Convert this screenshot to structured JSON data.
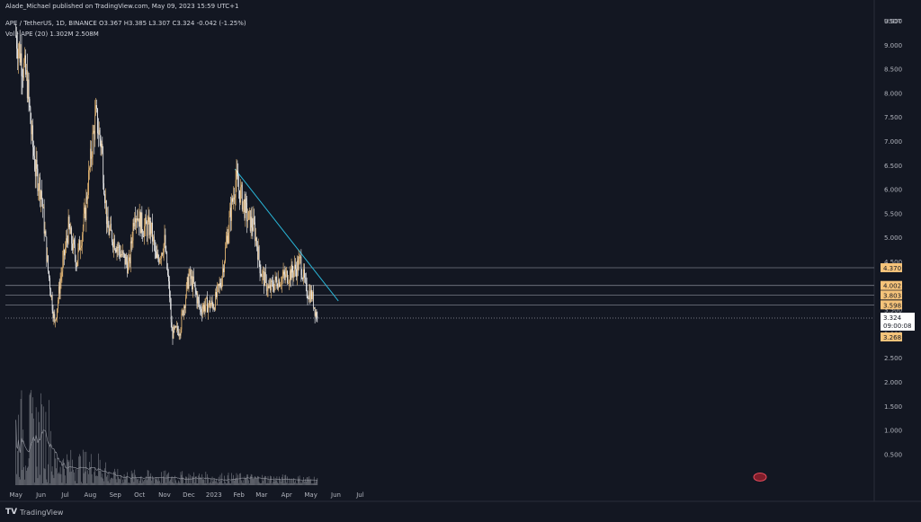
{
  "header": {
    "publisher": "Alade_Michael published on TradingView.com, May 09, 2023 15:59 UTC+1",
    "symbol_line": "APE / TetherUS, 1D, BINANCE",
    "ohlc": "O3.367  H3.385  L3.307  C3.324  -0.042 (-1.25%)",
    "volume_line": "Vol · APE (20)  1.302M  2.508M"
  },
  "footer": {
    "brand": "TradingView",
    "logo": "TV"
  },
  "colors": {
    "background": "#131722",
    "candle_up": "#f5c37a",
    "candle_down": "#ffffff",
    "volume": "#7b7e86",
    "trendline": "#29b6d8",
    "level_line": "#787b86",
    "price_label_bg": "#f5c37a",
    "current_label_bg": "#ffffff"
  },
  "chart_data": {
    "type": "candlestick",
    "symbol": "APE / TetherUS",
    "interval": "1D",
    "exchange": "BINANCE",
    "currency_label": "USDT",
    "y_ticks": [
      "9.500",
      "9.000",
      "8.500",
      "8.000",
      "7.500",
      "7.000",
      "6.500",
      "6.000",
      "5.500",
      "5.000",
      "4.500",
      "4.000",
      "3.500",
      "3.000",
      "2.500",
      "2.000",
      "1.500",
      "1.000",
      "0.500"
    ],
    "x_ticks": [
      "May",
      "Jun",
      "Jul",
      "Aug",
      "Sep",
      "Oct",
      "Nov",
      "Dec",
      "2023",
      "Feb",
      "Mar",
      "Apr",
      "May",
      "Jun",
      "Jul"
    ],
    "ylim": [
      0.3,
      10.0
    ],
    "last": {
      "open": 3.367,
      "high": 3.385,
      "low": 3.307,
      "close": 3.324,
      "change": -0.042,
      "change_pct": -1.25
    },
    "levels": [
      4.37,
      4.002,
      3.803,
      3.598
    ],
    "price_labels": [
      {
        "text": "4.370",
        "value": 4.37
      },
      {
        "text": "4.002",
        "value": 4.002
      },
      {
        "text": "3.803",
        "value": 3.803
      },
      {
        "text": "3.598",
        "value": 3.598
      }
    ],
    "current_price_label": {
      "price": "3.324",
      "countdown": "09:00:08",
      "value": 3.324
    },
    "low_label": {
      "text": "3.268",
      "value": 3.268
    },
    "trendline": {
      "from": {
        "date": "2023-01-27",
        "price": 6.42
      },
      "to": {
        "date": "2023-06-04",
        "price": 3.68
      }
    },
    "price_series": {
      "dates": [
        "2022-05-01",
        "2022-05-15",
        "2022-05-20",
        "2022-05-25",
        "2022-06-01",
        "2022-06-10",
        "2022-06-18",
        "2022-06-25",
        "2022-07-05",
        "2022-07-15",
        "2022-07-25",
        "2022-08-03",
        "2022-08-08",
        "2022-08-15",
        "2022-08-22",
        "2022-09-01",
        "2022-09-10",
        "2022-09-18",
        "2022-09-25",
        "2022-10-05",
        "2022-10-15",
        "2022-10-22",
        "2022-11-01",
        "2022-11-07",
        "2022-11-10",
        "2022-11-20",
        "2022-12-01",
        "2022-12-07",
        "2022-12-15",
        "2022-12-22",
        "2023-01-01",
        "2023-01-10",
        "2023-01-18",
        "2023-01-28",
        "2023-02-05",
        "2023-02-12",
        "2023-02-20",
        "2023-02-28",
        "2023-03-10",
        "2023-03-20",
        "2023-04-01",
        "2023-04-10",
        "2023-04-18",
        "2023-04-25",
        "2023-05-02",
        "2023-05-09"
      ],
      "close": [
        9.2,
        8.2,
        7.2,
        6.4,
        6.0,
        4.3,
        3.2,
        4.1,
        5.2,
        4.5,
        5.4,
        6.9,
        7.5,
        6.9,
        5.2,
        4.9,
        4.6,
        4.4,
        5.6,
        5.2,
        5.2,
        4.5,
        4.9,
        3.8,
        3.0,
        3.1,
        4.2,
        4.0,
        3.5,
        3.6,
        3.6,
        4.1,
        5.1,
        6.2,
        5.8,
        5.4,
        5.2,
        4.3,
        3.9,
        4.1,
        4.2,
        4.3,
        4.5,
        3.9,
        3.8,
        3.3
      ]
    },
    "volume_series": {
      "unit": "M",
      "ma_period": 20,
      "ma_value": 1.302,
      "last_value": 2.508
    }
  }
}
